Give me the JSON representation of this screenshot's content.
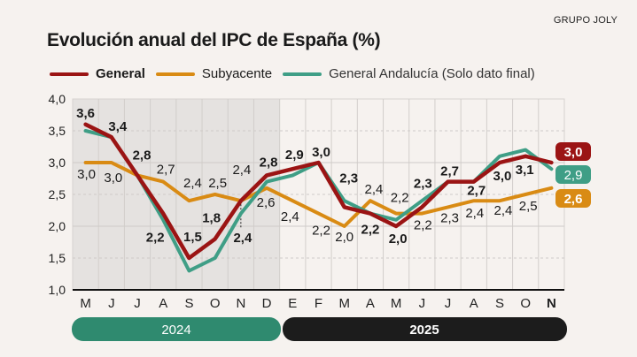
{
  "brand": "GRUPO JOLY",
  "chart_data": {
    "type": "line",
    "title": "Evolución anual del IPC de España (%)",
    "categories": [
      "M",
      "J",
      "J",
      "A",
      "S",
      "O",
      "N",
      "D",
      "E",
      "F",
      "M",
      "A",
      "M",
      "J",
      "J",
      "A",
      "S",
      "O",
      "N"
    ],
    "years": [
      {
        "label": "2024",
        "color": "#2f8a6f"
      },
      {
        "label": "2025",
        "color": "#1c1c1c"
      }
    ],
    "yticks": [
      "4,0",
      "3,5",
      "3,0",
      "2,5",
      "2,0",
      "1,5",
      "1,0"
    ],
    "ylim": [
      1.0,
      4.0
    ],
    "grid": true,
    "legend_position": "top",
    "series": [
      {
        "name": "General",
        "color": "#9b1414",
        "values": [
          3.6,
          3.4,
          2.8,
          2.2,
          1.5,
          1.8,
          2.4,
          2.8,
          2.9,
          3.0,
          2.3,
          2.2,
          2.0,
          2.3,
          2.7,
          2.7,
          3.0,
          3.1,
          3.0
        ],
        "labels": [
          "3,6",
          "3,4",
          "2,8",
          "2,2",
          "1,5",
          "1,8",
          "2,4",
          "2,8",
          "2,9",
          "3,0",
          "2,3",
          "2,2",
          "2,0",
          "2,3",
          "2,7",
          "2,7",
          "3,0",
          "3,1",
          "3,0"
        ]
      },
      {
        "name": "Subyacente",
        "color": "#d98b14",
        "values": [
          3.0,
          3.0,
          2.8,
          2.7,
          2.4,
          2.5,
          2.4,
          2.6,
          2.4,
          2.2,
          2.0,
          2.4,
          2.2,
          2.2,
          2.3,
          2.4,
          2.4,
          2.5,
          2.6
        ],
        "labels": [
          "3,0",
          "3,0",
          "",
          "2,7",
          "2,4",
          "2,5",
          "2,4",
          "2,6",
          "2,4",
          "2,2",
          "2,0",
          "2,4",
          "2,2",
          "2,2",
          "2,3",
          "2,4",
          "2,4",
          "2,5",
          "2,6"
        ]
      },
      {
        "name": "General Andalucía (Solo dato final)",
        "color": "#3f9e86",
        "values": [
          3.5,
          3.4,
          2.8,
          2.1,
          1.3,
          1.5,
          2.2,
          2.7,
          2.8,
          3.0,
          2.4,
          2.2,
          2.1,
          2.4,
          2.7,
          2.7,
          3.1,
          3.2,
          2.9
        ],
        "labels": [
          "",
          "",
          "",
          "",
          "",
          "",
          "",
          "",
          "",
          "",
          "",
          "",
          "",
          "",
          "",
          "",
          "",
          "",
          "2,9"
        ]
      }
    ]
  }
}
